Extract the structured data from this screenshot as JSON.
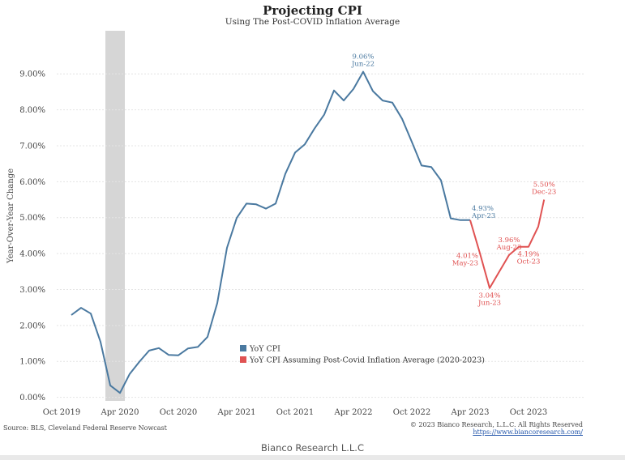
{
  "chart_data": {
    "type": "line",
    "title": "Projecting CPI",
    "subtitle": "Using The Post-COVID Inflation Average",
    "ylabel": "Year-Over-Year Change",
    "ylim": [
      -0.1,
      10.2
    ],
    "yticks": [
      "0.00%",
      "1.00%",
      "2.00%",
      "3.00%",
      "4.00%",
      "5.00%",
      "6.00%",
      "7.00%",
      "8.00%",
      "9.00%"
    ],
    "ytick_values": [
      0,
      1,
      2,
      3,
      4,
      5,
      6,
      7,
      8,
      9
    ],
    "xlim": [
      0,
      49.5
    ],
    "xticks": [
      {
        "label": "Oct 2019",
        "x": 0
      },
      {
        "label": "Apr 2020",
        "x": 6
      },
      {
        "label": "Oct 2020",
        "x": 12
      },
      {
        "label": "Apr 2021",
        "x": 18
      },
      {
        "label": "Oct 2021",
        "x": 24
      },
      {
        "label": "Apr 2022",
        "x": 30
      },
      {
        "label": "Oct 2022",
        "x": 36
      },
      {
        "label": "Apr 2023",
        "x": 42
      },
      {
        "label": "Oct 2023",
        "x": 48
      }
    ],
    "recession_shade": {
      "from": 4.5,
      "to": 6.5
    },
    "legend_position": "bottom-center",
    "series": [
      {
        "name": "YoY CPI",
        "color": "#4a79a0",
        "x": [
          1,
          2,
          3,
          4,
          5,
          6,
          7,
          8,
          9,
          10,
          11,
          12,
          13,
          14,
          15,
          16,
          17,
          18,
          19,
          20,
          21,
          22,
          23,
          24,
          25,
          26,
          27,
          28,
          29,
          30,
          31,
          32,
          33,
          34,
          35,
          36,
          37,
          38,
          39,
          40,
          41,
          42
        ],
        "values": [
          2.29,
          2.49,
          2.33,
          1.54,
          0.33,
          0.12,
          0.65,
          0.99,
          1.3,
          1.37,
          1.18,
          1.17,
          1.36,
          1.4,
          1.68,
          2.62,
          4.16,
          4.99,
          5.39,
          5.37,
          5.25,
          5.39,
          6.22,
          6.81,
          7.04,
          7.48,
          7.87,
          8.54,
          8.26,
          8.58,
          9.06,
          8.52,
          8.26,
          8.2,
          7.75,
          7.11,
          6.45,
          6.41,
          6.04,
          4.98,
          4.93,
          4.93
        ],
        "annotations": [
          {
            "x": 31,
            "value": 9.06,
            "value_label": "9.06%",
            "date_label": "Jun-22",
            "side": "above"
          },
          {
            "x": 42,
            "value": 4.93,
            "value_label": "4.93%",
            "date_label": "Apr-23",
            "side": "right"
          }
        ]
      },
      {
        "name": "YoY CPI Assuming Post-Covid Inflation Average (2020-2023)",
        "color": "#e05252",
        "x": [
          42,
          43,
          44,
          45,
          46,
          47,
          48,
          49
        ],
        "values": [
          4.93,
          4.01,
          3.04,
          3.5,
          3.96,
          4.19,
          4.19,
          4.75
        ],
        "end_point": {
          "x": 49.6,
          "value": 5.5
        },
        "annotations": [
          {
            "x": 43,
            "value": 4.01,
            "value_label": "4.01%",
            "date_label": "May-23",
            "side": "left"
          },
          {
            "x": 44,
            "value": 3.04,
            "value_label": "3.04%",
            "date_label": "Jun-23",
            "side": "below"
          },
          {
            "x": 46,
            "value": 3.96,
            "value_label": "3.96%",
            "date_label": "Aug-23",
            "side": "above"
          },
          {
            "x": 48,
            "value": 4.19,
            "value_label": "4.19%",
            "date_label": "Oct-23",
            "side": "below"
          },
          {
            "x": 49.6,
            "value": 5.5,
            "value_label": "5.50%",
            "date_label": "Dec-23",
            "side": "above"
          }
        ]
      }
    ]
  },
  "footer": {
    "source": "Source: BLS, Cleveland Federal Reserve Nowcast",
    "copyright": "© 2023 Bianco Research, L.L.C. All Rights Reserved",
    "url": "https://www.biancoresearch.com/",
    "brand": "Bianco Research L.L.C"
  }
}
